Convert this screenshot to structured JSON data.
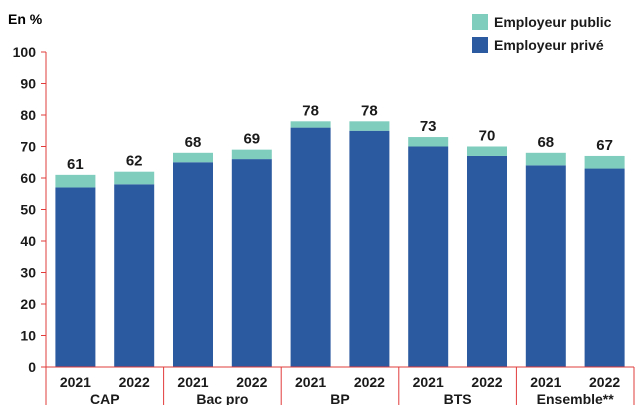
{
  "chart_data": {
    "type": "bar",
    "stacked": true,
    "ylabel": "En %",
    "ylim": [
      0,
      100
    ],
    "yticks": [
      0,
      10,
      20,
      30,
      40,
      50,
      60,
      70,
      80,
      90,
      100
    ],
    "groups": [
      "CAP",
      "Bac pro",
      "BP",
      "BTS",
      "Ensemble**"
    ],
    "categories": [
      "2021",
      "2022",
      "2021",
      "2022",
      "2021",
      "2022",
      "2021",
      "2022",
      "2021",
      "2022"
    ],
    "series": [
      {
        "name": "Employeur privé",
        "color": "#2c5aa0",
        "values": [
          57,
          58,
          65,
          66,
          76,
          75,
          70,
          67,
          64,
          63
        ]
      },
      {
        "name": "Employeur public",
        "color": "#7fcdbd",
        "values": [
          4,
          4,
          3,
          3,
          2,
          3,
          3,
          3,
          4,
          4
        ]
      }
    ],
    "totals": [
      61,
      62,
      68,
      69,
      78,
      78,
      73,
      70,
      68,
      67
    ],
    "grid": false,
    "legend_position": "top-right"
  }
}
